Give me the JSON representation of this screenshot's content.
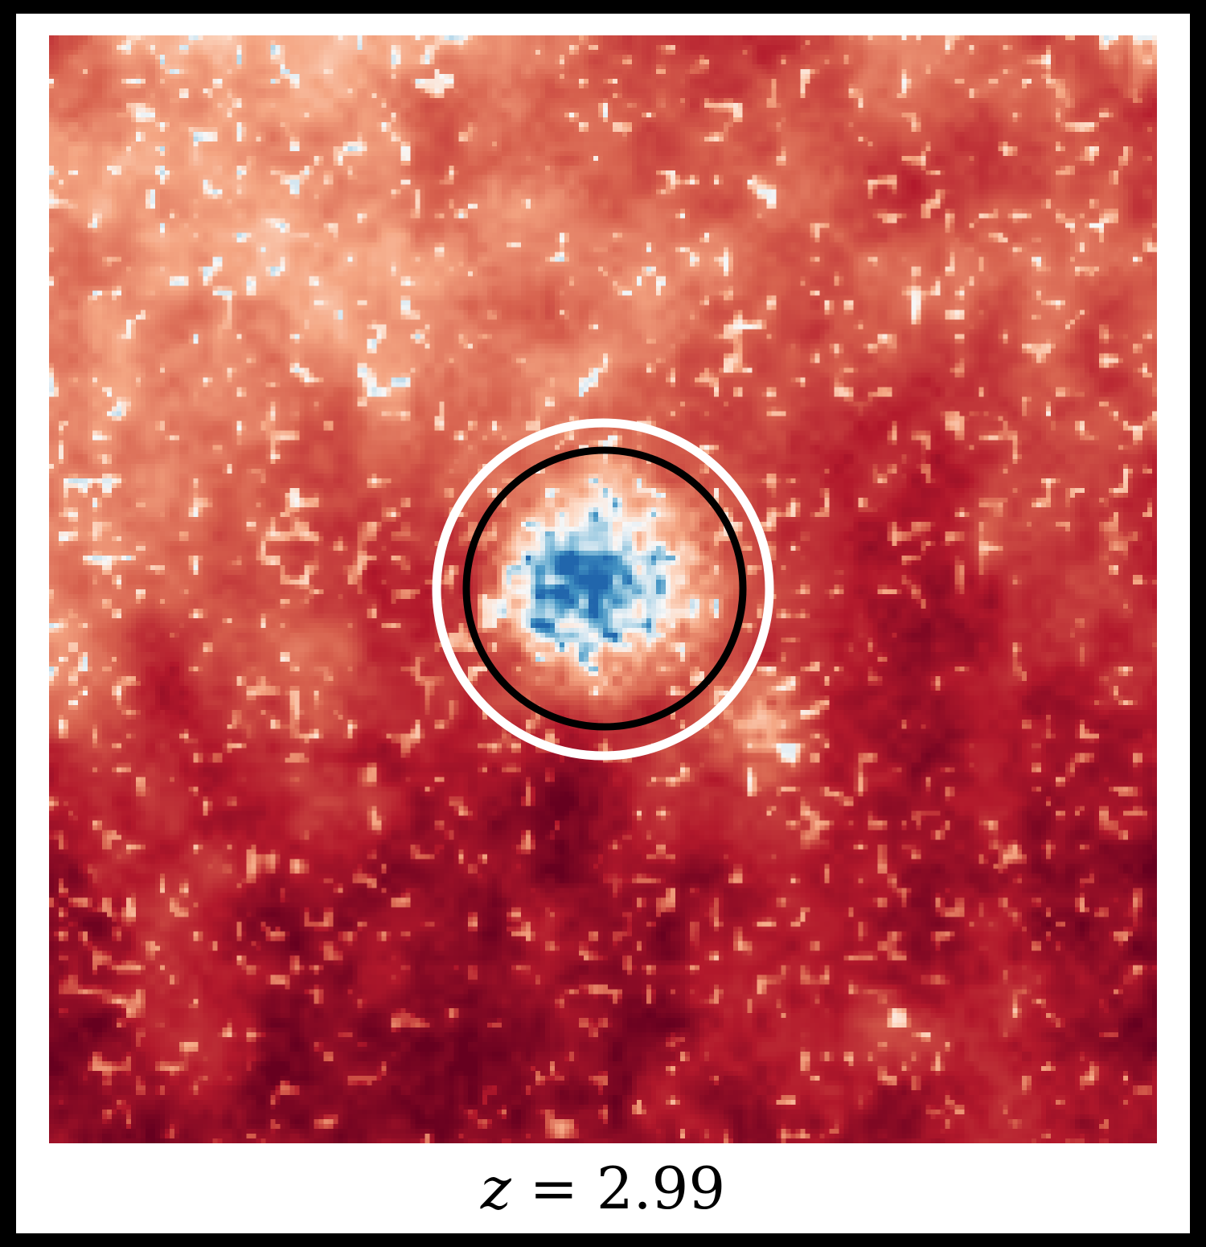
{
  "figure": {
    "caption_variable": "z",
    "caption_equals": "=",
    "caption_value": "2.99"
  },
  "field_map": {
    "colormap": "diverging-red-white-blue",
    "colors": {
      "deep_red": "#67001f",
      "red": "#b2182b",
      "light_red": "#d6604d",
      "salmon": "#f4a582",
      "pale": "#fddbc7",
      "white": "#f7f7f7",
      "light_blue": "#d1e5f0",
      "sky": "#92c5de",
      "blue": "#4393c3",
      "deep_blue": "#2166ac"
    },
    "outer_circle_color": "#ffffff",
    "inner_circle_color": "#000000"
  }
}
